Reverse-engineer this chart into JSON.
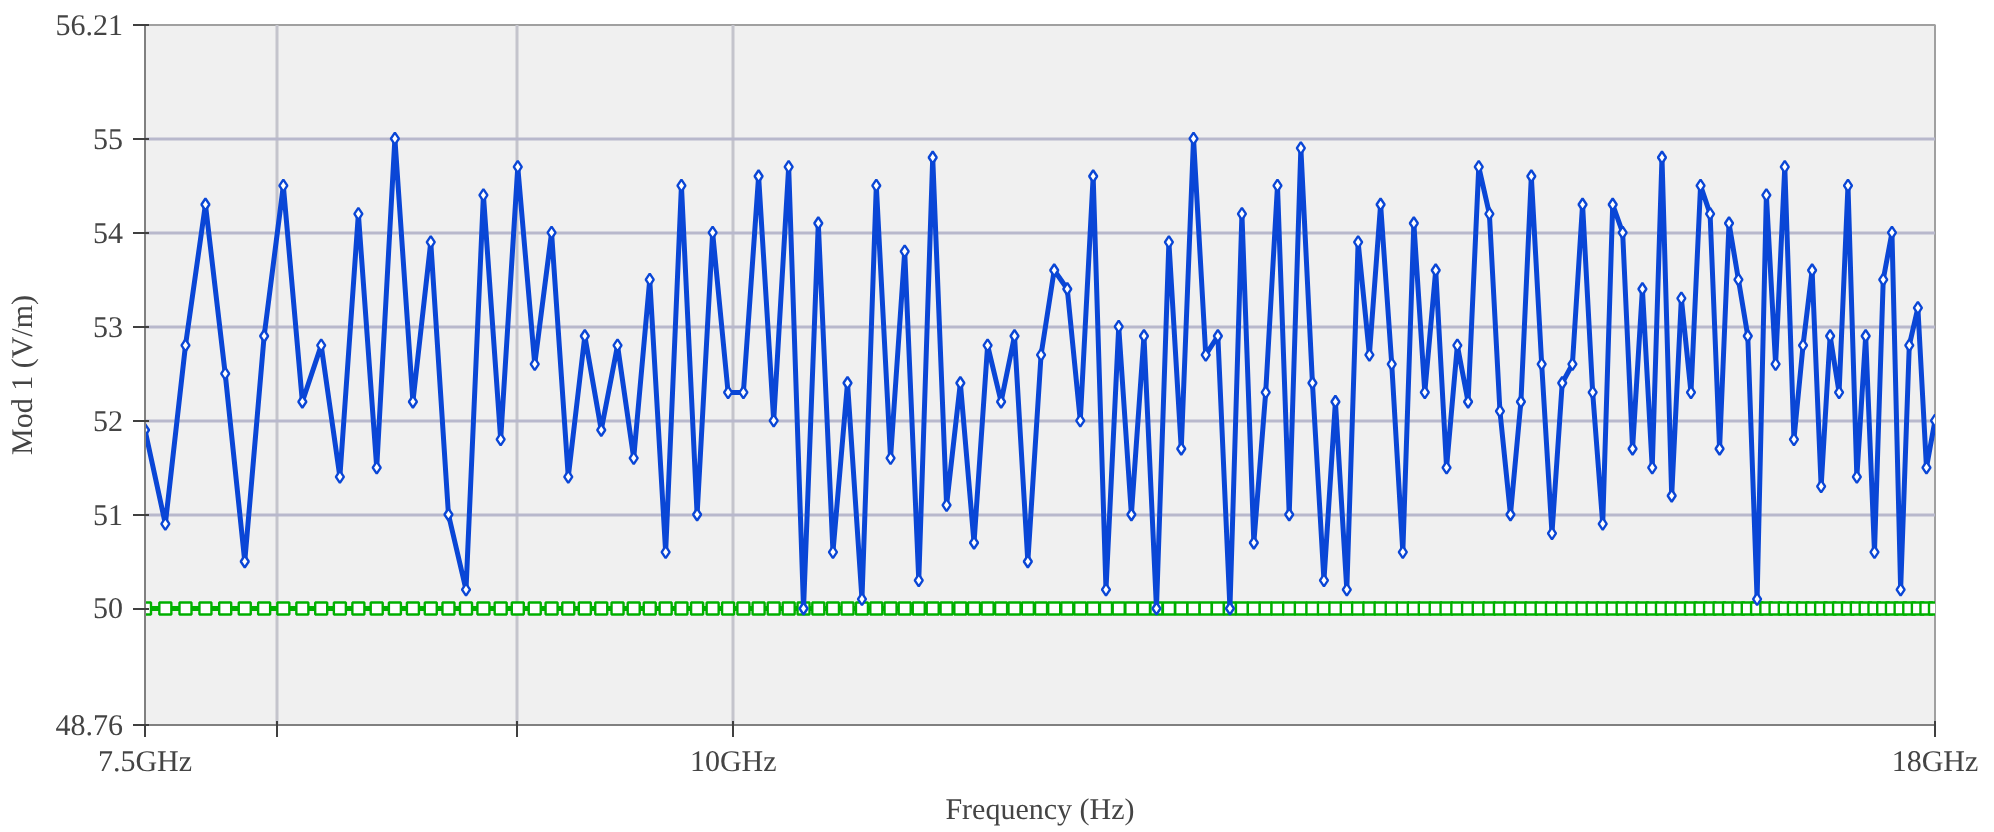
{
  "chart_data": {
    "type": "line",
    "xlabel": "Frequency (Hz)",
    "ylabel": "Mod 1 (V/m)",
    "log": "x",
    "grid": true,
    "line_style": "solid",
    "xlim": [
      7.5,
      18
    ],
    "xticks": [
      {
        "value": 7.5,
        "label": "7.5GHz"
      },
      {
        "value": 8,
        "label": null
      },
      {
        "value": 9,
        "label": null
      },
      {
        "value": 10,
        "label": "10GHz"
      },
      {
        "value": 18,
        "label": "18GHz"
      }
    ],
    "ylim": [
      48.76,
      56.21
    ],
    "yticks": [
      48.76,
      50,
      51,
      52,
      53,
      54,
      55,
      56.21
    ],
    "x": [
      7.5,
      7.575,
      7.65,
      7.725,
      7.8,
      7.875,
      7.95,
      8.025,
      8.1,
      8.175,
      8.25,
      8.325,
      8.4,
      8.475,
      8.55,
      8.625,
      8.7,
      8.775,
      8.85,
      8.925,
      9.0,
      9.075,
      9.15,
      9.225,
      9.3,
      9.375,
      9.45,
      9.525,
      9.6,
      9.675,
      9.75,
      9.825,
      9.9,
      9.975,
      10.05,
      10.125,
      10.2,
      10.275,
      10.35,
      10.425,
      10.5,
      10.575,
      10.65,
      10.725,
      10.8,
      10.875,
      10.95,
      11.025,
      11.1,
      11.175,
      11.25,
      11.325,
      11.4,
      11.475,
      11.55,
      11.625,
      11.7,
      11.775,
      11.85,
      11.925,
      12.0,
      12.075,
      12.15,
      12.225,
      12.3,
      12.375,
      12.45,
      12.525,
      12.6,
      12.675,
      12.75,
      12.825,
      12.9,
      12.975,
      13.05,
      13.125,
      13.2,
      13.275,
      13.35,
      13.425,
      13.5,
      13.575,
      13.65,
      13.725,
      13.8,
      13.875,
      13.95,
      14.025,
      14.1,
      14.175,
      14.25,
      14.325,
      14.4,
      14.475,
      14.55,
      14.625,
      14.7,
      14.775,
      14.85,
      14.925,
      15.0,
      15.075,
      15.15,
      15.225,
      15.3,
      15.375,
      15.45,
      15.525,
      15.6,
      15.675,
      15.75,
      15.825,
      15.9,
      15.975,
      16.05,
      16.125,
      16.2,
      16.275,
      16.35,
      16.425,
      16.5,
      16.575,
      16.65,
      16.725,
      16.8,
      16.875,
      16.95,
      17.025,
      17.1,
      17.175,
      17.25,
      17.325,
      17.4,
      17.475,
      17.55,
      17.625,
      17.7,
      17.775,
      17.85,
      17.925,
      18.0
    ],
    "series": [
      {
        "color": "#00b000",
        "marker": "square",
        "values": [
          50,
          50,
          50,
          50,
          50,
          50,
          50,
          50,
          50,
          50,
          50,
          50,
          50,
          50,
          50,
          50,
          50,
          50,
          50,
          50,
          50,
          50,
          50,
          50,
          50,
          50,
          50,
          50,
          50,
          50,
          50,
          50,
          50,
          50,
          50,
          50,
          50,
          50,
          50,
          50,
          50,
          50,
          50,
          50,
          50,
          50,
          50,
          50,
          50,
          50,
          50,
          50,
          50,
          50,
          50,
          50,
          50,
          50,
          50,
          50,
          50,
          50,
          50,
          50,
          50,
          50,
          50,
          50,
          50,
          50,
          50,
          50,
          50,
          50,
          50,
          50,
          50,
          50,
          50,
          50,
          50,
          50,
          50,
          50,
          50,
          50,
          50,
          50,
          50,
          50,
          50,
          50,
          50,
          50,
          50,
          50,
          50,
          50,
          50,
          50,
          50,
          50,
          50,
          50,
          50,
          50,
          50,
          50,
          50,
          50,
          50,
          50,
          50,
          50,
          50,
          50,
          50,
          50,
          50,
          50,
          50,
          50,
          50,
          50,
          50,
          50,
          50,
          50,
          50,
          50,
          50,
          50,
          50,
          50,
          50,
          50,
          50,
          50,
          50,
          50,
          50
        ]
      },
      {
        "color": "#0a46d6",
        "marker": "diamond",
        "values": [
          51.9,
          50.9,
          52.8,
          54.3,
          52.5,
          50.5,
          52.9,
          54.5,
          52.2,
          52.8,
          51.4,
          54.2,
          51.5,
          55.0,
          52.2,
          53.9,
          51.0,
          50.2,
          54.4,
          51.8,
          54.7,
          52.6,
          54.0,
          51.4,
          52.9,
          51.9,
          52.8,
          51.6,
          53.5,
          50.6,
          54.5,
          51.0,
          54.0,
          52.3,
          52.3,
          54.6,
          52.0,
          54.7,
          50.0,
          54.1,
          50.6,
          52.4,
          50.1,
          54.5,
          51.6,
          53.8,
          50.3,
          54.8,
          51.1,
          52.4,
          50.7,
          52.8,
          52.2,
          52.9,
          50.5,
          52.7,
          53.6,
          53.4,
          52.0,
          54.6,
          50.2,
          53.0,
          51.0,
          52.9,
          50.0,
          53.9,
          51.7,
          55.0,
          52.7,
          52.9,
          50.0,
          54.2,
          50.7,
          52.3,
          54.5,
          51.0,
          54.9,
          52.4,
          50.3,
          52.2,
          50.2,
          53.9,
          52.7,
          54.3,
          52.6,
          50.6,
          54.1,
          52.3,
          53.6,
          51.5,
          52.8,
          52.2,
          54.7,
          54.2,
          52.1,
          51.0,
          52.2,
          54.6,
          52.6,
          50.8,
          52.4,
          52.6,
          54.3,
          52.3,
          50.9,
          54.3,
          54.0,
          51.7,
          53.4,
          51.5,
          54.8,
          51.2,
          53.3,
          52.3,
          54.5,
          54.2,
          51.7,
          54.1,
          53.5,
          52.9,
          50.1,
          54.4,
          52.6,
          54.7,
          51.8,
          52.8,
          53.6,
          51.3,
          52.9,
          52.3,
          54.5,
          51.4,
          52.9,
          50.6,
          53.5,
          54.0,
          50.2,
          52.8,
          53.2,
          51.5,
          52.0
        ]
      }
    ]
  }
}
